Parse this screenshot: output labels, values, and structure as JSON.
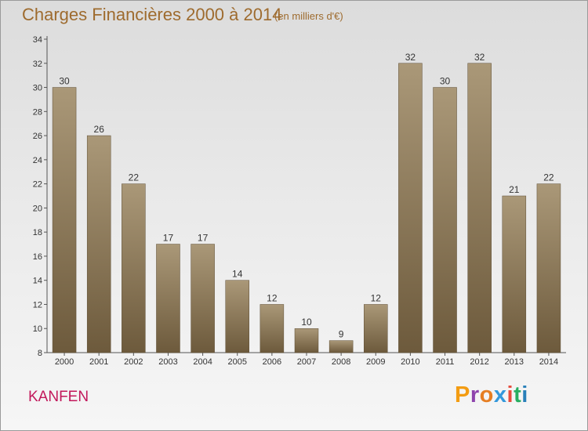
{
  "header": {
    "title": "Charges Financières 2000 à 2014",
    "subtitle": "(en milliers d'€)"
  },
  "footer": {
    "commune": "KANFEN",
    "logo": "Proxiti"
  },
  "colors": {
    "title": "#9e6b2e",
    "commune": "#c2185b",
    "bar_light": "#aa9878",
    "bar_dark": "#6d5a3c",
    "logo_letters": [
      "#f39c12",
      "#8e44ad",
      "#e67e22",
      "#3498db",
      "#e74c3c",
      "#27ae60",
      "#2980b9"
    ]
  },
  "chart_data": {
    "type": "bar",
    "categories": [
      "2000",
      "2001",
      "2002",
      "2003",
      "2004",
      "2005",
      "2006",
      "2007",
      "2008",
      "2009",
      "2010",
      "2011",
      "2012",
      "2013",
      "2014"
    ],
    "values": [
      30,
      26,
      22,
      17,
      17,
      14,
      12,
      10,
      9,
      12,
      32,
      30,
      32,
      21,
      22
    ],
    "value_labels": [
      "30",
      "26",
      "22",
      "17",
      "17",
      "14",
      "12",
      "10",
      "9",
      "12",
      "32",
      "30",
      "32",
      "21",
      "22"
    ],
    "yticks": [
      "8",
      "10",
      "12",
      "14",
      "16",
      "18",
      "20",
      "22",
      "24",
      "26",
      "28",
      "30",
      "32",
      "34"
    ],
    "ylim": [
      8,
      34
    ],
    "title": "Charges Financières 2000 à 2014",
    "xlabel": "",
    "ylabel": "",
    "grid": false,
    "legend": "none"
  }
}
